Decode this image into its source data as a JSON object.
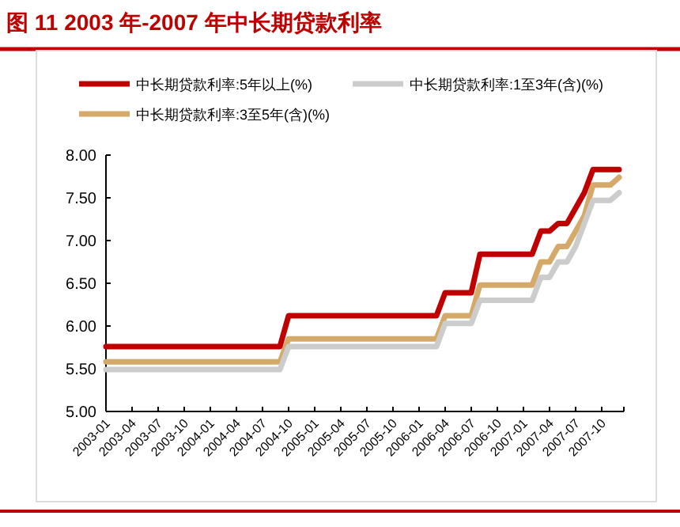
{
  "chart_data": {
    "type": "line",
    "title": "图 11 2003 年-2007 年中长期贷款利率",
    "categories": [
      "2003-01",
      null,
      null,
      "2003-04",
      null,
      null,
      "2003-07",
      null,
      null,
      "2003-10",
      null,
      null,
      "2004-01",
      null,
      null,
      "2004-04",
      null,
      null,
      "2004-07",
      null,
      null,
      "2004-10",
      null,
      null,
      "2005-01",
      null,
      null,
      "2005-04",
      null,
      null,
      "2005-07",
      null,
      null,
      "2005-10",
      null,
      null,
      "2006-01",
      null,
      null,
      "2006-04",
      null,
      null,
      "2006-07",
      null,
      null,
      "2006-10",
      null,
      null,
      "2007-01",
      null,
      null,
      "2007-04",
      null,
      null,
      "2007-07",
      null,
      null,
      "2007-10",
      null,
      null
    ],
    "series": [
      {
        "name": "中长期贷款利率:5年以上(%)",
        "color": "#c00000",
        "values": [
          5.76,
          5.76,
          5.76,
          5.76,
          5.76,
          5.76,
          5.76,
          5.76,
          5.76,
          5.76,
          5.76,
          5.76,
          5.76,
          5.76,
          5.76,
          5.76,
          5.76,
          5.76,
          5.76,
          5.76,
          5.76,
          6.12,
          6.12,
          6.12,
          6.12,
          6.12,
          6.12,
          6.12,
          6.12,
          6.12,
          6.12,
          6.12,
          6.12,
          6.12,
          6.12,
          6.12,
          6.12,
          6.12,
          6.12,
          6.39,
          6.39,
          6.39,
          6.39,
          6.84,
          6.84,
          6.84,
          6.84,
          6.84,
          6.84,
          6.84,
          7.11,
          7.11,
          7.2,
          7.2,
          7.38,
          7.56,
          7.83,
          7.83,
          7.83,
          7.83
        ]
      },
      {
        "name": "中长期贷款利率:1至3年(含)(%)",
        "color": "#cccccc",
        "values": [
          5.49,
          5.49,
          5.49,
          5.49,
          5.49,
          5.49,
          5.49,
          5.49,
          5.49,
          5.49,
          5.49,
          5.49,
          5.49,
          5.49,
          5.49,
          5.49,
          5.49,
          5.49,
          5.49,
          5.49,
          5.49,
          5.76,
          5.76,
          5.76,
          5.76,
          5.76,
          5.76,
          5.76,
          5.76,
          5.76,
          5.76,
          5.76,
          5.76,
          5.76,
          5.76,
          5.76,
          5.76,
          5.76,
          5.76,
          6.03,
          6.03,
          6.03,
          6.03,
          6.3,
          6.3,
          6.3,
          6.3,
          6.3,
          6.3,
          6.3,
          6.57,
          6.57,
          6.75,
          6.75,
          6.93,
          7.2,
          7.47,
          7.47,
          7.47,
          7.56
        ]
      },
      {
        "name": "中长期贷款利率:3至5年(含)(%)",
        "color": "#d4a96a",
        "values": [
          5.58,
          5.58,
          5.58,
          5.58,
          5.58,
          5.58,
          5.58,
          5.58,
          5.58,
          5.58,
          5.58,
          5.58,
          5.58,
          5.58,
          5.58,
          5.58,
          5.58,
          5.58,
          5.58,
          5.58,
          5.58,
          5.85,
          5.85,
          5.85,
          5.85,
          5.85,
          5.85,
          5.85,
          5.85,
          5.85,
          5.85,
          5.85,
          5.85,
          5.85,
          5.85,
          5.85,
          5.85,
          5.85,
          5.85,
          6.12,
          6.12,
          6.12,
          6.12,
          6.48,
          6.48,
          6.48,
          6.48,
          6.48,
          6.48,
          6.48,
          6.75,
          6.75,
          6.93,
          6.93,
          7.11,
          7.29,
          7.65,
          7.65,
          7.65,
          7.74
        ]
      }
    ],
    "ylim": [
      5,
      8
    ],
    "yticks": [
      {
        "value": 5,
        "label": "5.00"
      },
      {
        "value": 5.5,
        "label": "5.50"
      },
      {
        "value": 6,
        "label": "6.00"
      },
      {
        "value": 6.5,
        "label": "6.50"
      },
      {
        "value": 7,
        "label": "7.00"
      },
      {
        "value": 7.5,
        "label": "7.50"
      },
      {
        "value": 8,
        "label": "8.00"
      }
    ],
    "legend": "top",
    "grid": false,
    "marker": "none",
    "line_style": "solid"
  }
}
